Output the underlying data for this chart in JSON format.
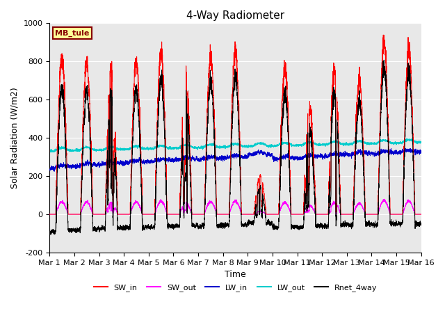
{
  "title": "4-Way Radiometer",
  "xlabel": "Time",
  "ylabel": "Solar Radiation (W/m2)",
  "ylim": [
    -200,
    1000
  ],
  "xlim": [
    0,
    15
  ],
  "x_tick_labels": [
    "Mar 1",
    "Mar 2",
    "Mar 3",
    "Mar 4",
    "Mar 5",
    "Mar 6",
    "Mar 7",
    "Mar 8",
    "Mar 9",
    "Mar 10",
    "Mar 11",
    "Mar 12",
    "Mar 13",
    "Mar 14",
    "Mar 15",
    "Mar 16"
  ],
  "legend_entries": [
    "SW_in",
    "SW_out",
    "LW_in",
    "LW_out",
    "Rnet_4way"
  ],
  "legend_colors": [
    "#ff0000",
    "#ff00ff",
    "#0000cc",
    "#00cccc",
    "#000000"
  ],
  "station_label": "MB_tule",
  "station_label_color": "#880000",
  "station_label_bg": "#ffff99",
  "background_color": "#e8e8e8",
  "grid_color": "#ffffff",
  "title_fontsize": 11,
  "axis_label_fontsize": 9,
  "tick_fontsize": 8,
  "n_days": 15,
  "pts_per_day": 288
}
